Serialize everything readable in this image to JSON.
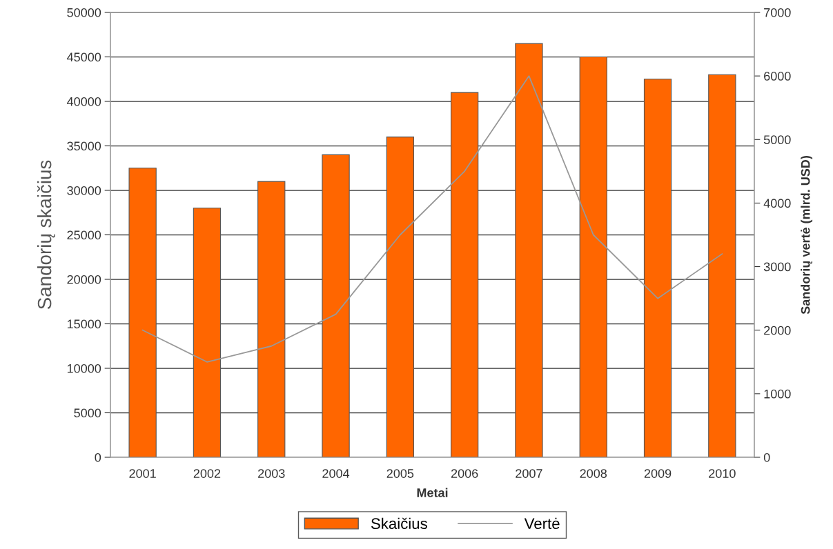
{
  "chart_data": {
    "type": "bar",
    "xlabel": "Metai",
    "ylabel": "Sandorių skaičius",
    "y2label": "Sandorių vertė (mlrd. USD)",
    "categories": [
      "2001",
      "2002",
      "2003",
      "2004",
      "2005",
      "2006",
      "2007",
      "2008",
      "2009",
      "2010"
    ],
    "series": [
      {
        "name": "Skaičius",
        "color": "#ff6600",
        "values": [
          32500,
          28000,
          31000,
          34000,
          36000,
          41000,
          46500,
          45000,
          42500,
          43000
        ]
      },
      {
        "name": "Vertė",
        "type": "line",
        "axis": "y2",
        "color": "#999999",
        "values": [
          2000,
          1500,
          1750,
          2250,
          3500,
          4500,
          6000,
          3500,
          2500,
          3200
        ]
      }
    ],
    "ylim": [
      0,
      50000
    ],
    "yticks": [
      0,
      5000,
      10000,
      15000,
      20000,
      25000,
      30000,
      35000,
      40000,
      45000,
      50000
    ],
    "y2lim": [
      0,
      7000
    ],
    "y2ticks": [
      0,
      1000,
      2000,
      3000,
      4000,
      5000,
      6000,
      7000
    ],
    "grid": "y",
    "legend": "bottom"
  }
}
